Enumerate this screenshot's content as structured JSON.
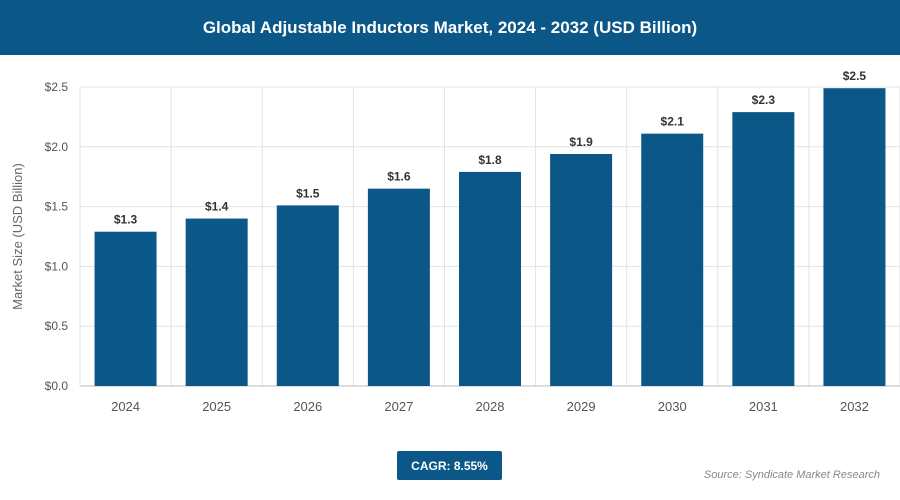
{
  "header": {
    "title": "Global Adjustable Inductors Market, 2024 - 2032 (USD Billion)"
  },
  "footer": {
    "cagr": "CAGR: 8.55%",
    "source": "Source: Syndicate Market Research"
  },
  "colors": {
    "bar": "#0b5788",
    "header": "#0b5788"
  },
  "chart_data": {
    "type": "bar",
    "title": "Global Adjustable Inductors Market, 2024 - 2032 (USD Billion)",
    "xlabel": "",
    "ylabel": "Market Size (USD Billion)",
    "ylim": [
      0,
      2.5
    ],
    "yticks": [
      "$0.0",
      "$0.5",
      "$1.0",
      "$1.5",
      "$2.0",
      "$2.5"
    ],
    "grid": true,
    "categories": [
      "2024",
      "2025",
      "2026",
      "2027",
      "2028",
      "2029",
      "2030",
      "2031",
      "2032"
    ],
    "values": [
      1.29,
      1.4,
      1.51,
      1.65,
      1.79,
      1.94,
      2.11,
      2.29,
      2.49
    ],
    "data_labels": [
      "$1.3",
      "$1.4",
      "$1.5",
      "$1.6",
      "$1.8",
      "$1.9",
      "$2.1",
      "$2.3",
      "$2.5"
    ]
  }
}
